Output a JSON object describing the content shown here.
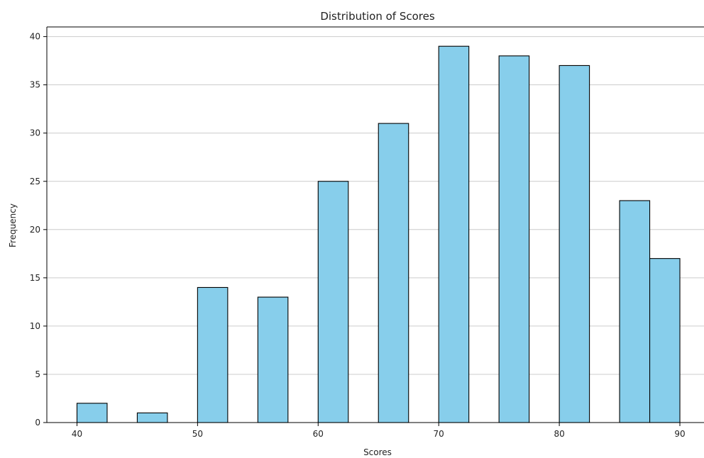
{
  "chart_data": {
    "type": "bar",
    "title": "Distribution of Scores",
    "xlabel": "Scores",
    "ylabel": "Frequency",
    "bins": [
      {
        "start": 40.0,
        "end": 42.5,
        "count": 2
      },
      {
        "start": 42.5,
        "end": 45.0,
        "count": 0
      },
      {
        "start": 45.0,
        "end": 47.5,
        "count": 1
      },
      {
        "start": 47.5,
        "end": 50.0,
        "count": 0
      },
      {
        "start": 50.0,
        "end": 52.5,
        "count": 14
      },
      {
        "start": 52.5,
        "end": 55.0,
        "count": 0
      },
      {
        "start": 55.0,
        "end": 57.5,
        "count": 13
      },
      {
        "start": 57.5,
        "end": 60.0,
        "count": 0
      },
      {
        "start": 60.0,
        "end": 62.5,
        "count": 25
      },
      {
        "start": 62.5,
        "end": 65.0,
        "count": 0
      },
      {
        "start": 65.0,
        "end": 67.5,
        "count": 31
      },
      {
        "start": 67.5,
        "end": 70.0,
        "count": 0
      },
      {
        "start": 70.0,
        "end": 72.5,
        "count": 39
      },
      {
        "start": 72.5,
        "end": 75.0,
        "count": 0
      },
      {
        "start": 75.0,
        "end": 77.5,
        "count": 38
      },
      {
        "start": 77.5,
        "end": 80.0,
        "count": 0
      },
      {
        "start": 80.0,
        "end": 82.5,
        "count": 37
      },
      {
        "start": 82.5,
        "end": 85.0,
        "count": 0
      },
      {
        "start": 85.0,
        "end": 87.5,
        "count": 23
      },
      {
        "start": 87.5,
        "end": 90.0,
        "count": 17
      }
    ],
    "xlim": [
      37.5,
      92
    ],
    "ylim": [
      0,
      41
    ],
    "xticks": [
      40,
      50,
      60,
      70,
      80,
      90
    ],
    "yticks": [
      0,
      5,
      10,
      15,
      20,
      25,
      30,
      35,
      40
    ],
    "grid": "y",
    "colors": {
      "bar_fill": "#87ceeb",
      "bar_edge": "#000000",
      "grid": "#cccccc"
    }
  }
}
